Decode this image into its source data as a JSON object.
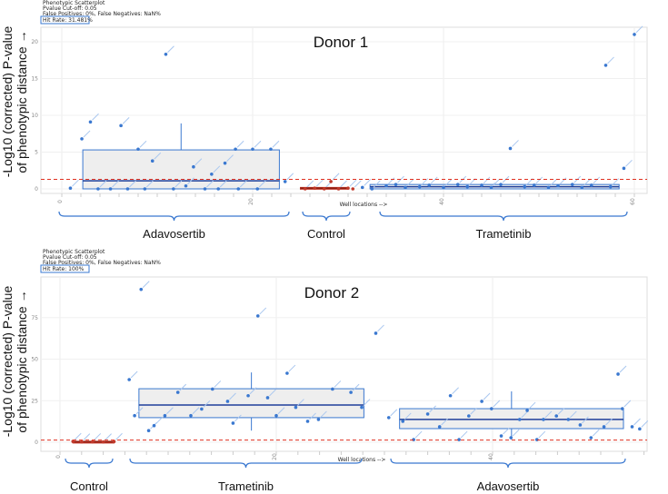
{
  "chart_data": [
    {
      "type": "scatter",
      "title": "Donor 1",
      "header": [
        "Phenotypic Scatterplot",
        "Pvalue Cut-off: 0.05",
        "False Positives: 0%, False Negatives: NaN%"
      ],
      "hit_rate": "Hit Rate: 31.481%",
      "ylabel": [
        "-Log10 (corrected) P-value",
        "of phenotypic distance →"
      ],
      "xlabel": "Well locations -->",
      "xticks": [
        0,
        20,
        40,
        60
      ],
      "yticks": [
        0,
        5,
        10,
        15,
        20
      ],
      "threshold": 1.3,
      "groups": [
        {
          "label": "Adavosertib",
          "color": "#3a78d0",
          "box": {
            "from": 2.2,
            "to": 22.8,
            "q1": 0,
            "median": 1.1,
            "q3": 5.3,
            "whisker_low": 0,
            "whisker_high": 8.9
          },
          "points": [
            [
              0.9,
              0.1
            ],
            [
              2.1,
              6.8
            ],
            [
              3,
              9.1
            ],
            [
              3.8,
              0
            ],
            [
              5.1,
              0
            ],
            [
              6.2,
              8.6
            ],
            [
              6.9,
              0
            ],
            [
              8,
              5.4
            ],
            [
              8.7,
              0
            ],
            [
              9.5,
              3.8
            ],
            [
              10.9,
              18.3
            ],
            [
              11.7,
              0
            ],
            [
              13,
              0.4
            ],
            [
              13.8,
              3
            ],
            [
              15,
              0
            ],
            [
              15.7,
              2
            ],
            [
              16.4,
              0
            ],
            [
              17.1,
              3.5
            ],
            [
              18.2,
              5.4
            ],
            [
              18.5,
              0
            ],
            [
              20,
              5.4
            ],
            [
              20.5,
              0
            ],
            [
              21.9,
              5.4
            ],
            [
              23.4,
              1
            ]
          ]
        },
        {
          "label": "Control",
          "color": "#c0392b",
          "box": {
            "from": 25,
            "to": 30,
            "q1": 0,
            "median": 0.1,
            "q3": 0.2,
            "whisker_low": 0,
            "whisker_high": 0.2
          },
          "points": [
            [
              25.5,
              0
            ],
            [
              26.5,
              0.1
            ],
            [
              27.5,
              0
            ],
            [
              28.2,
              1
            ],
            [
              29,
              0
            ],
            [
              30,
              0.1
            ],
            [
              30.5,
              0
            ]
          ]
        },
        {
          "label": "Trametinib",
          "color": "#3a78d0",
          "box": {
            "from": 32.3,
            "to": 58.4,
            "q1": 0,
            "median": 0.3,
            "q3": 0.6,
            "whisker_low": 0,
            "whisker_high": 0.8
          },
          "points": [
            [
              31.5,
              0.2
            ],
            [
              32.5,
              0
            ],
            [
              34,
              0.4
            ],
            [
              35,
              0.6
            ],
            [
              36,
              0.2
            ],
            [
              37.5,
              0.3
            ],
            [
              38.5,
              0.5
            ],
            [
              40,
              0.2
            ],
            [
              41.5,
              0.6
            ],
            [
              42.5,
              0.3
            ],
            [
              44,
              0.5
            ],
            [
              45,
              0.2
            ],
            [
              46,
              0.6
            ],
            [
              47,
              5.5
            ],
            [
              48.5,
              0.3
            ],
            [
              49.5,
              0.5
            ],
            [
              51,
              0.2
            ],
            [
              52,
              0.4
            ],
            [
              53.5,
              0.6
            ],
            [
              54.5,
              0.2
            ],
            [
              55.5,
              0.5
            ],
            [
              57,
              16.8
            ],
            [
              57.5,
              0.3
            ],
            [
              58.9,
              2.8
            ],
            [
              60,
              21
            ]
          ]
        }
      ]
    },
    {
      "type": "scatter",
      "title": "Donor 2",
      "header": [
        "Phenotypic Scatterplot",
        "Pvalue Cut-off: 0.05",
        "False Positives: 0%, False Negatives: NaN%"
      ],
      "hit_rate": "Hit Rate: 100%",
      "ylabel": [
        "-Log10 (corrected) P-value",
        "of phenotypic distance →"
      ],
      "xlabel": "Well locations -->",
      "xticks": [
        0,
        20,
        40
      ],
      "yticks": [
        0,
        25,
        50,
        75
      ],
      "threshold": 1.3,
      "groups": [
        {
          "label": "Control",
          "color": "#c0392b",
          "box": {
            "from": 1.2,
            "to": 5,
            "q1": 0,
            "median": 0.3,
            "q3": 0.6,
            "whisker_low": 0,
            "whisker_high": 0.6
          },
          "points": [
            [
              1.2,
              0.5
            ],
            [
              2,
              0.2
            ],
            [
              3,
              0.3
            ],
            [
              4,
              0.2
            ],
            [
              5,
              0.4
            ]
          ]
        },
        {
          "label": "Trametinib",
          "color": "#3a78d0",
          "box": {
            "from": 7.3,
            "to": 28.1,
            "q1": 14.8,
            "median": 22.4,
            "q3": 32.2,
            "whisker_low": 7,
            "whisker_high": 42
          },
          "points": [
            [
              6.4,
              37.7
            ],
            [
              6.9,
              16
            ],
            [
              7.5,
              92
            ],
            [
              8.2,
              7
            ],
            [
              8.7,
              10
            ],
            [
              9.7,
              16
            ],
            [
              10.9,
              30
            ],
            [
              12.1,
              16
            ],
            [
              13.1,
              20
            ],
            [
              14.1,
              32
            ],
            [
              15.5,
              24.6
            ],
            [
              16,
              11.5
            ],
            [
              17.4,
              28
            ],
            [
              18.3,
              76
            ],
            [
              19.2,
              26.8
            ],
            [
              20,
              16
            ],
            [
              21,
              41.5
            ],
            [
              21.8,
              21
            ],
            [
              22.9,
              12.6
            ],
            [
              23.9,
              13.7
            ],
            [
              25.2,
              32
            ],
            [
              26.9,
              30
            ],
            [
              27.9,
              21
            ],
            [
              29.2,
              65.6
            ]
          ]
        },
        {
          "label": "Adavosertib",
          "color": "#3a78d0",
          "box": {
            "from": 31.4,
            "to": 52.1,
            "q1": 8.2,
            "median": 13.7,
            "q3": 20.2,
            "whisker_low": 1.6,
            "whisker_high": 30.6
          },
          "points": [
            [
              30.4,
              14.8
            ],
            [
              31.7,
              12.6
            ],
            [
              32.7,
              1.6
            ],
            [
              34,
              17
            ],
            [
              35.1,
              9.3
            ],
            [
              36.1,
              28
            ],
            [
              36.9,
              1.6
            ],
            [
              37.8,
              15.8
            ],
            [
              39,
              24.6
            ],
            [
              39.9,
              20.2
            ],
            [
              40.8,
              3.8
            ],
            [
              41.7,
              2.7
            ],
            [
              42.5,
              13.7
            ],
            [
              43.2,
              19.1
            ],
            [
              44.1,
              1.6
            ],
            [
              44.7,
              13.7
            ],
            [
              45.9,
              15.8
            ],
            [
              47,
              13.7
            ],
            [
              48.1,
              10.4
            ],
            [
              49.1,
              2.7
            ],
            [
              50.3,
              9.3
            ],
            [
              51.6,
              41
            ],
            [
              52,
              20.2
            ],
            [
              52.9,
              9.3
            ],
            [
              53.6,
              8
            ]
          ]
        }
      ]
    }
  ]
}
